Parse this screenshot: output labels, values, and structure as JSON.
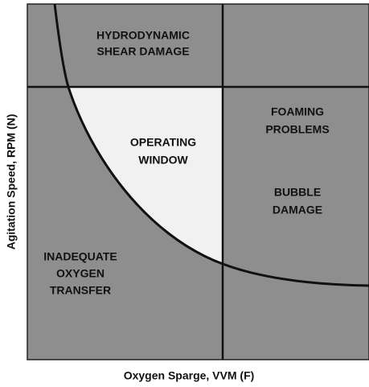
{
  "regions": {
    "shear": [
      "HYDRODYNAMIC",
      "SHEAR DAMAGE"
    ],
    "foaming": [
      "FOAMING",
      "PROBLEMS"
    ],
    "window": [
      "OPERATING",
      "WINDOW"
    ],
    "bubble": [
      "BUBBLE",
      "DAMAGE"
    ],
    "oxygen": [
      "INADEQUATE",
      "OXYGEN",
      "TRANSFER"
    ]
  },
  "axes": {
    "x": "Oxygen Sparge, VVM (F)",
    "y": "Agitation Speed, RPM (N)"
  }
}
